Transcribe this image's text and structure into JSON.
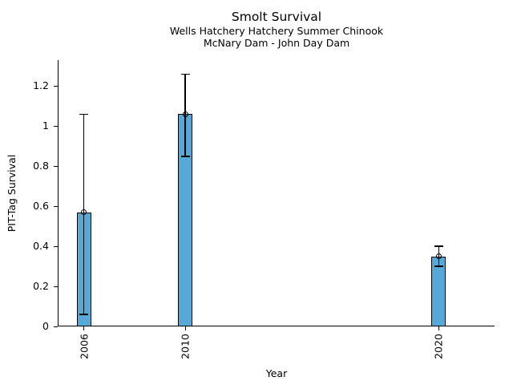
{
  "chart_data": {
    "type": "bar",
    "title": "Smolt Survival",
    "subtitle1": "Wells Hatchery Hatchery Summer Chinook",
    "subtitle2": "McNary Dam - John Day Dam",
    "xlabel": "Year",
    "ylabel": "PIT-Tag Survival",
    "categories": [
      "2006",
      "2010",
      "2020"
    ],
    "x_years": [
      2006,
      2010,
      2020
    ],
    "values": [
      0.57,
      1.06,
      0.35
    ],
    "error_bars": [
      {
        "lower": 0.06,
        "upper": 1.06
      },
      {
        "lower": 0.85,
        "upper": 1.26
      },
      {
        "lower": 0.3,
        "upper": 0.4
      }
    ],
    "marker": "open-circle",
    "ytick_values": [
      0,
      0.2,
      0.4,
      0.6,
      0.8,
      1.0,
      1.2
    ],
    "ytick_labels": [
      "0",
      "0.2",
      "0.4",
      "0.6",
      "0.8",
      "1",
      "1.2"
    ],
    "ylim": [
      0,
      1.33
    ],
    "xlim": [
      2005.0,
      2022.2
    ],
    "grid": false,
    "legend_position": "none",
    "bar_color": "#56A8D6",
    "bar_edge_color": "#000000",
    "errorbar_color": "#000000"
  }
}
